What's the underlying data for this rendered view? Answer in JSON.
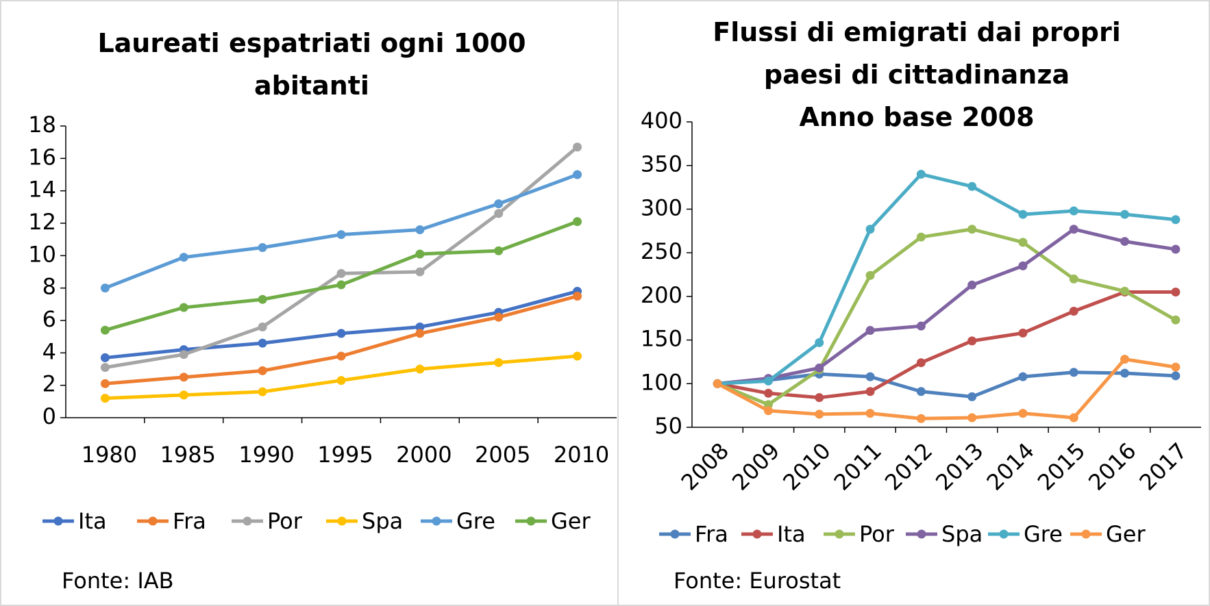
{
  "chart_data": [
    {
      "type": "line",
      "title": "Laureati espatriati ogni 1000 abitanti",
      "source": "Fonte: IAB",
      "categories": [
        "1980",
        "1985",
        "1990",
        "1995",
        "2000",
        "2005",
        "2010"
      ],
      "ylim": [
        0,
        18
      ],
      "yticks": [
        0,
        2,
        4,
        6,
        8,
        10,
        12,
        14,
        16,
        18
      ],
      "grid": false,
      "legend": "bottom",
      "series": [
        {
          "name": "Ita",
          "color": "#4472c4",
          "values": [
            3.7,
            4.2,
            4.6,
            5.2,
            5.6,
            6.5,
            7.8
          ]
        },
        {
          "name": "Fra",
          "color": "#ed7d31",
          "values": [
            2.1,
            2.5,
            2.9,
            3.8,
            5.2,
            6.2,
            7.5
          ]
        },
        {
          "name": "Por",
          "color": "#a5a5a5",
          "values": [
            3.1,
            3.9,
            5.6,
            8.9,
            9.0,
            12.6,
            16.7
          ]
        },
        {
          "name": "Spa",
          "color": "#ffc000",
          "values": [
            1.2,
            1.4,
            1.6,
            2.3,
            3.0,
            3.4,
            3.8
          ]
        },
        {
          "name": "Gre",
          "color": "#5b9bd5",
          "values": [
            8.0,
            9.9,
            10.5,
            11.3,
            11.6,
            13.2,
            15.0
          ]
        },
        {
          "name": "Ger",
          "color": "#70ad47",
          "values": [
            5.4,
            6.8,
            7.3,
            8.2,
            10.1,
            10.3,
            12.1
          ]
        }
      ]
    },
    {
      "type": "line",
      "title": "Flussi di emigrati dai propri paesi di cittadinanza",
      "subtitle": "Anno base 2008",
      "source": "Fonte: Eurostat",
      "categories": [
        "2008",
        "2009",
        "2010",
        "2011",
        "2012",
        "2013",
        "2014",
        "2015",
        "2016",
        "2017"
      ],
      "ylim": [
        50,
        400
      ],
      "yticks": [
        50,
        100,
        150,
        200,
        250,
        300,
        350,
        400
      ],
      "grid": false,
      "legend": "bottom",
      "series": [
        {
          "name": "Fra",
          "color": "#4f81bd",
          "values": [
            100,
            104,
            111,
            108,
            91,
            85,
            108,
            113,
            112,
            109
          ]
        },
        {
          "name": "Ita",
          "color": "#c0504d",
          "values": [
            100,
            89,
            84,
            91,
            124,
            149,
            158,
            183,
            205,
            205
          ]
        },
        {
          "name": "Por",
          "color": "#9bbb59",
          "values": [
            100,
            76,
            116,
            224,
            268,
            277,
            262,
            220,
            206,
            173
          ]
        },
        {
          "name": "Spa",
          "color": "#8064a2",
          "values": [
            100,
            106,
            118,
            161,
            166,
            213,
            235,
            277,
            263,
            254
          ]
        },
        {
          "name": "Gre",
          "color": "#4bacc6",
          "values": [
            100,
            103,
            147,
            277,
            340,
            326,
            294,
            298,
            294,
            288
          ]
        },
        {
          "name": "Ger",
          "color": "#f79646",
          "values": [
            100,
            69,
            65,
            66,
            60,
            61,
            66,
            61,
            128,
            119
          ]
        }
      ]
    }
  ]
}
